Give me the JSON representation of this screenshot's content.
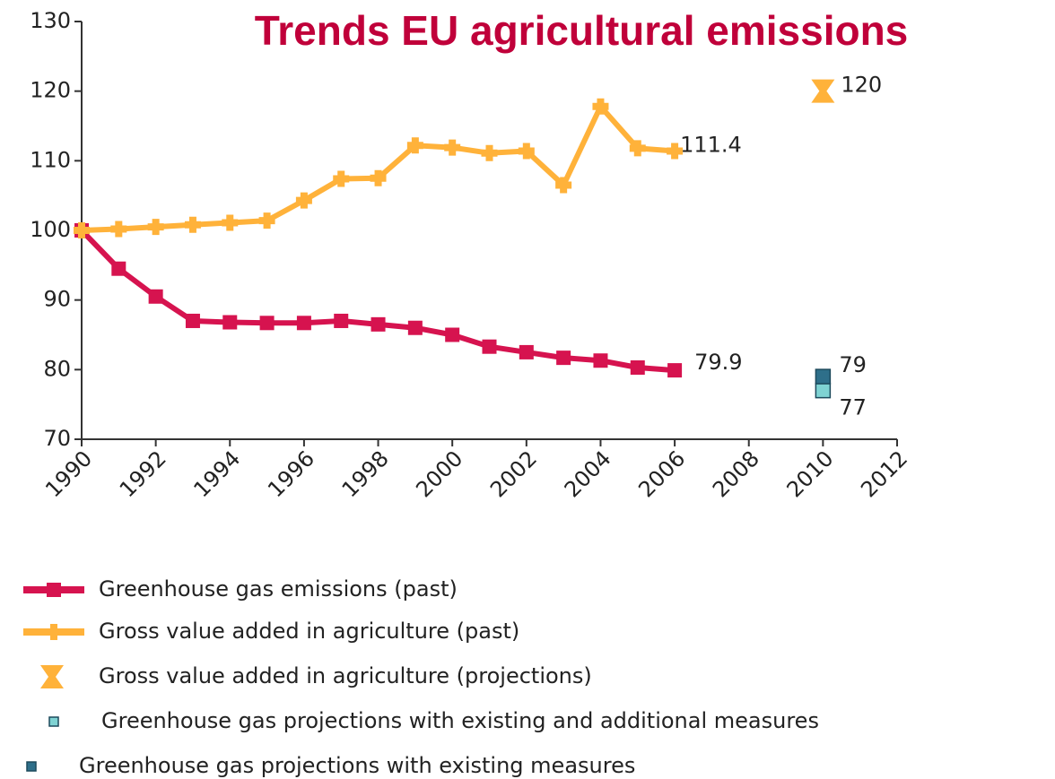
{
  "chart_data": {
    "type": "line",
    "title": "Trends EU agricultural emissions",
    "xlim": [
      1990,
      2012
    ],
    "xticks": [
      1990,
      1992,
      1994,
      1996,
      1998,
      2000,
      2002,
      2004,
      2006,
      2008,
      2010,
      2012
    ],
    "ylim": [
      70,
      130
    ],
    "yticks": [
      70,
      80,
      90,
      100,
      110,
      120,
      130
    ],
    "grid": false,
    "legend": "bottom",
    "series": [
      {
        "name": "Greenhouse gas emissions (past)",
        "color": "#d6134f",
        "marker": "square",
        "line": true,
        "label_last": true,
        "x": [
          1990,
          1991,
          1992,
          1993,
          1994,
          1995,
          1996,
          1997,
          1998,
          1999,
          2000,
          2001,
          2002,
          2003,
          2004,
          2005,
          2006
        ],
        "values": [
          100,
          94.5,
          90.5,
          87,
          86.8,
          86.7,
          86.7,
          87,
          86.5,
          86,
          85,
          83.3,
          82.5,
          81.7,
          81.3,
          80.3,
          79.9
        ]
      },
      {
        "name": "Gross value added in agriculture (past)",
        "color": "#ffb23a",
        "marker": "plus",
        "line": true,
        "label_last": true,
        "x": [
          1990,
          1991,
          1992,
          1993,
          1994,
          1995,
          1996,
          1997,
          1998,
          1999,
          2000,
          2001,
          2002,
          2003,
          2004,
          2005,
          2006
        ],
        "values": [
          100,
          100.2,
          100.5,
          100.8,
          101.1,
          101.4,
          104.3,
          107.4,
          107.5,
          112.2,
          111.9,
          111.1,
          111.4,
          106.5,
          117.8,
          111.8,
          111.4
        ]
      },
      {
        "name": "Gross value added in agriculture (projections)",
        "color": "#ffb23a",
        "marker": "hourglass",
        "line": false,
        "label_last": true,
        "x": [
          2010
        ],
        "values": [
          120
        ]
      },
      {
        "name": "Greenhouse gas projections with existing and additional measures",
        "color": "#7fd3d3",
        "marker": "square",
        "line": false,
        "label_last": true,
        "x": [
          2010
        ],
        "values": [
          77
        ]
      },
      {
        "name": "Greenhouse gas projections with existing measures",
        "color": "#2e6f8a",
        "marker": "square",
        "line": false,
        "label_last": true,
        "x": [
          2010
        ],
        "values": [
          79
        ]
      }
    ]
  }
}
